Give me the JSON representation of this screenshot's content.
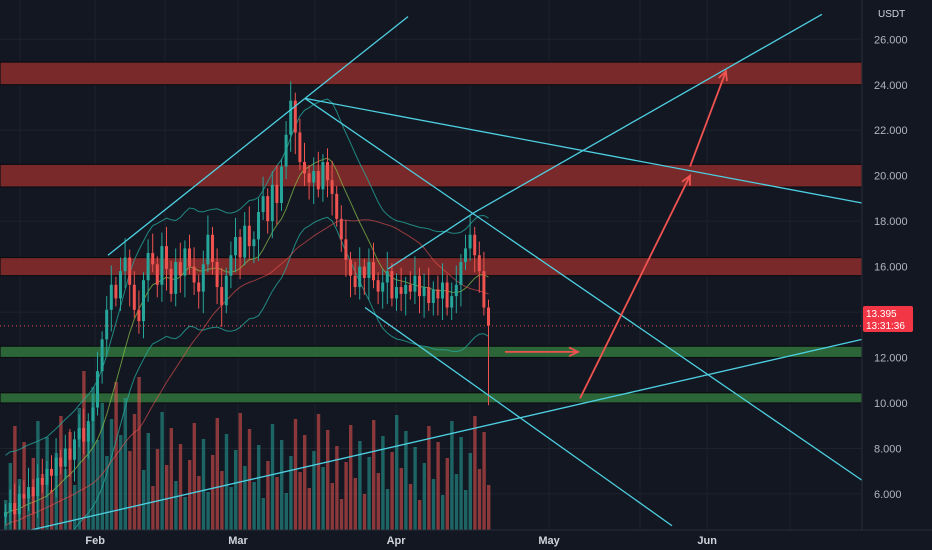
{
  "axis": {
    "currency": "USDT",
    "y_ticks": [
      "6.000",
      "8.000",
      "10.000",
      "12.000",
      "14.000",
      "16.000",
      "18.000",
      "20.000",
      "22.000",
      "24.000",
      "26.000"
    ],
    "x_ticks": [
      "Feb",
      "Mar",
      "Apr",
      "May",
      "Jun"
    ],
    "current_price": "13.395",
    "countdown": "13:31:36"
  },
  "colors": {
    "background": "#131722",
    "grid": "#1e222d",
    "up": "#26a69a",
    "down": "#ef5350",
    "resistance_zone": "#7f2a2b",
    "support_zone": "#2e6b3a",
    "trendline": "#4dd0e1",
    "arrow": "#ef5350",
    "bollinger": "#26a69a",
    "price_label": "#f23645"
  },
  "chart_data": {
    "type": "candlestick",
    "ylim": [
      4.5,
      27
    ],
    "x_range": [
      "Jan 1",
      "Jun 30"
    ],
    "grid": true,
    "current_price": 13.395,
    "resistance_zones": [
      [
        24.0,
        25.0
      ],
      [
        19.5,
        20.5
      ],
      [
        15.6,
        16.4
      ]
    ],
    "support_zones": [
      [
        12.0,
        12.5
      ],
      [
        10.0,
        10.45
      ]
    ],
    "swing_high": 23.4,
    "projection": "rise from ~10.1 toward ~24.6 by late May"
  },
  "icons": {
    "arrows": "arrow-icon"
  }
}
